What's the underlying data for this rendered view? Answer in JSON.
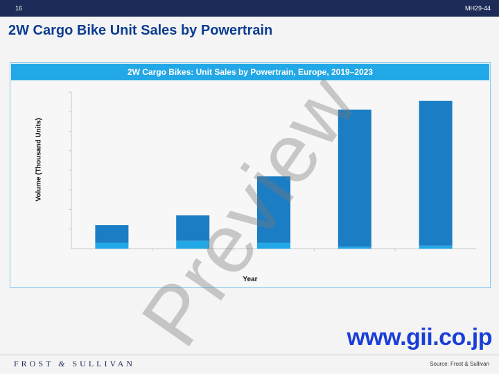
{
  "header": {
    "page_number": "16",
    "doc_code": "MH29-44"
  },
  "slide_title": "2W Cargo Bike Unit Sales by Powertrain",
  "chart_data": {
    "type": "bar",
    "title": "2W Cargo Bikes: Unit Sales by Powertrain, Europe, 2019–2023",
    "xlabel": "Year",
    "ylabel": "Volume (Thousand Units)",
    "categories": [
      "",
      "",
      "",
      "",
      ""
    ],
    "stacked": true,
    "grid": false,
    "series": [
      {
        "name": "",
        "color": "#22a8e6",
        "values": [
          0.3,
          0.4,
          0.3,
          0.1,
          0.15
        ]
      },
      {
        "name": "",
        "color": "#1b7dc4",
        "values": [
          0.9,
          1.3,
          3.4,
          7.0,
          7.4
        ]
      }
    ],
    "ylim": [
      0,
      8
    ]
  },
  "watermark": "Preview",
  "site_link": "www.gii.co.jp",
  "footer": {
    "logo": "FROST 𝓎 SULLIVAN",
    "source": "Source: Frost & Sullivan"
  }
}
